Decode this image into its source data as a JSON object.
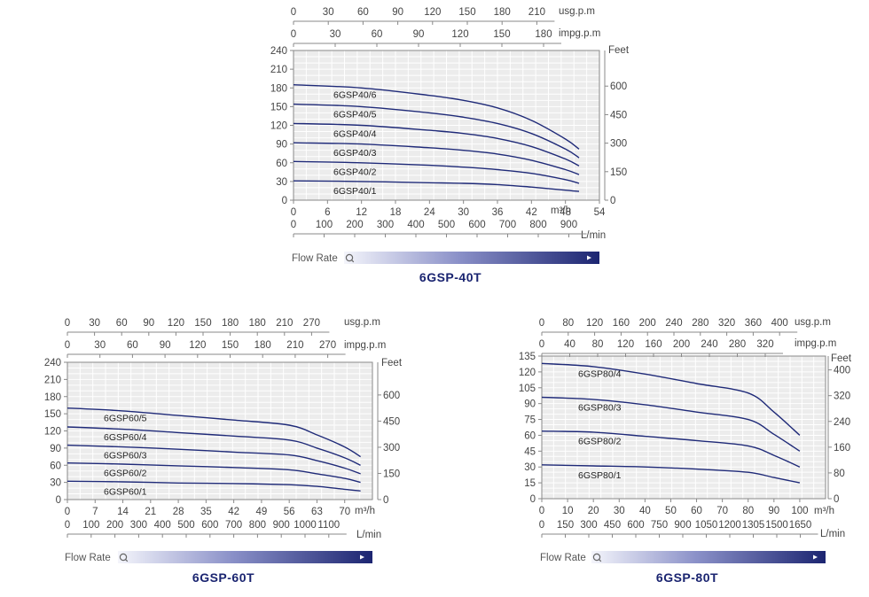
{
  "colors": {
    "curve": "#1f2a78",
    "plot_bg": "#ececec",
    "grid": "#ffffff",
    "axis": "#888888",
    "bar_start": "#f4f5fb",
    "bar_end": "#1c2571",
    "title": "#1a2470"
  },
  "chart_data": [
    {
      "type": "line",
      "title": "6GSP-40T",
      "flow_label": "Flow Rate",
      "flow_icon": "magnifier-icon",
      "x_unit": "m³/h",
      "x_ticks": [
        "0",
        "6",
        "12",
        "18",
        "24",
        "30",
        "36",
        "42",
        "48",
        "54"
      ],
      "xlim": [
        0,
        54
      ],
      "ylim": [
        0,
        240
      ],
      "y_ticks": [
        "0",
        "30",
        "60",
        "90",
        "120",
        "150",
        "180",
        "210",
        "240"
      ],
      "right_unit": "Feet",
      "right_ticks": [
        "0",
        "150",
        "300",
        "450",
        "600"
      ],
      "lmin_unit": "L/min",
      "lmin_ticks": [
        "0",
        "100",
        "200",
        "300",
        "400",
        "500",
        "600",
        "700",
        "800",
        "900"
      ],
      "usgpm_unit": "usg.p.m",
      "usgpm_ticks": [
        "0",
        "30",
        "60",
        "90",
        "120",
        "150",
        "180",
        "210"
      ],
      "impgpm_unit": "impg.p.m",
      "impgpm_ticks": [
        "0",
        "30",
        "60",
        "90",
        "120",
        "150",
        "180"
      ],
      "grid": true,
      "series": [
        {
          "name": "6GSP40/6",
          "x": [
            0,
            12,
            24,
            30,
            36,
            42,
            48,
            50.4
          ],
          "y": [
            185,
            180,
            168,
            160,
            148,
            128,
            98,
            82
          ]
        },
        {
          "name": "6GSP40/5",
          "x": [
            0,
            12,
            24,
            30,
            36,
            42,
            48,
            50.4
          ],
          "y": [
            154,
            150,
            140,
            133,
            123,
            107,
            82,
            68
          ]
        },
        {
          "name": "6GSP40/4",
          "x": [
            0,
            12,
            24,
            30,
            36,
            42,
            48,
            50.4
          ],
          "y": [
            123,
            120,
            112,
            107,
            99,
            86,
            66,
            55
          ]
        },
        {
          "name": "6GSP40/3",
          "x": [
            0,
            12,
            24,
            30,
            36,
            42,
            48,
            50.4
          ],
          "y": [
            92,
            90,
            84,
            80,
            74,
            64,
            49,
            41
          ]
        },
        {
          "name": "6GSP40/2",
          "x": [
            0,
            12,
            24,
            30,
            36,
            42,
            48,
            50.4
          ],
          "y": [
            62,
            60,
            56,
            53,
            49,
            43,
            33,
            27
          ]
        },
        {
          "name": "6GSP40/1",
          "x": [
            0,
            12,
            24,
            30,
            36,
            42,
            48,
            50.4
          ],
          "y": [
            31,
            30,
            28,
            27,
            25,
            21,
            16,
            14
          ]
        }
      ]
    },
    {
      "type": "line",
      "title": "6GSP-60T",
      "flow_label": "Flow Rate",
      "flow_icon": "magnifier-icon",
      "x_unit": "m³/h",
      "x_ticks": [
        "0",
        "7",
        "14",
        "21",
        "28",
        "35",
        "42",
        "49",
        "56",
        "63",
        "70"
      ],
      "xlim": [
        0,
        77
      ],
      "ylim": [
        0,
        240
      ],
      "y_ticks": [
        "0",
        "30",
        "60",
        "90",
        "120",
        "150",
        "180",
        "210",
        "240"
      ],
      "right_unit": "Feet",
      "right_ticks": [
        "0",
        "150",
        "300",
        "450",
        "600"
      ],
      "lmin_unit": "L/min",
      "lmin_ticks": [
        "0",
        "100",
        "200",
        "300",
        "400",
        "500",
        "600",
        "700",
        "800",
        "900",
        "1000",
        "1100"
      ],
      "usgpm_unit": "usg.p.m",
      "usgpm_ticks": [
        "0",
        "30",
        "60",
        "90",
        "120",
        "150",
        "180",
        "180",
        "210",
        "270"
      ],
      "impgpm_unit": "impg.p.m",
      "impgpm_ticks": [
        "0",
        "30",
        "60",
        "90",
        "120",
        "150",
        "180",
        "210",
        "270"
      ],
      "grid": true,
      "series": [
        {
          "name": "6GSP60/5",
          "x": [
            0,
            14,
            28,
            42,
            56,
            63,
            70,
            74
          ],
          "y": [
            160,
            155,
            147,
            139,
            130,
            113,
            92,
            75
          ]
        },
        {
          "name": "6GSP60/4",
          "x": [
            0,
            14,
            28,
            42,
            56,
            63,
            70,
            74
          ],
          "y": [
            127,
            123,
            117,
            111,
            104,
            90,
            73,
            60
          ]
        },
        {
          "name": "6GSP60/3",
          "x": [
            0,
            14,
            28,
            42,
            56,
            63,
            70,
            74
          ],
          "y": [
            95,
            92,
            88,
            83,
            78,
            68,
            55,
            45
          ]
        },
        {
          "name": "6GSP60/2",
          "x": [
            0,
            14,
            28,
            42,
            56,
            63,
            70,
            74
          ],
          "y": [
            64,
            62,
            59,
            56,
            52,
            45,
            37,
            30
          ]
        },
        {
          "name": "6GSP60/1",
          "x": [
            0,
            14,
            28,
            42,
            56,
            63,
            70,
            74
          ],
          "y": [
            32,
            31,
            29,
            28,
            26,
            23,
            18,
            15
          ]
        }
      ]
    },
    {
      "type": "line",
      "title": "6GSP-80T",
      "flow_label": "Flow Rate",
      "flow_icon": "magnifier-icon",
      "x_unit": "m³/h",
      "x_ticks": [
        "0",
        "10",
        "20",
        "30",
        "40",
        "50",
        "60",
        "70",
        "80",
        "90",
        "100"
      ],
      "xlim": [
        0,
        110
      ],
      "ylim": [
        0,
        135
      ],
      "y_ticks": [
        "0",
        "15",
        "30",
        "45",
        "60",
        "75",
        "90",
        "105",
        "120",
        "135"
      ],
      "right_unit": "Feet",
      "right_ticks": [
        "0",
        "80",
        "160",
        "240",
        "320",
        "400"
      ],
      "lmin_unit": "L/min",
      "lmin_ticks": [
        "0",
        "150",
        "300",
        "450",
        "600",
        "750",
        "900",
        "1050",
        "1200",
        "1305",
        "1500",
        "1650"
      ],
      "usgpm_unit": "usg.p.m",
      "usgpm_ticks": [
        "0",
        "80",
        "120",
        "160",
        "200",
        "240",
        "280",
        "320",
        "360",
        "400"
      ],
      "impgpm_unit": "impg.p.m",
      "impgpm_ticks": [
        "0",
        "40",
        "80",
        "120",
        "160",
        "200",
        "240",
        "280",
        "320"
      ],
      "grid": true,
      "series": [
        {
          "name": "6GSP80/4",
          "x": [
            0,
            20,
            40,
            60,
            80,
            90,
            100
          ],
          "y": [
            128,
            125,
            118,
            109,
            100,
            82,
            60
          ]
        },
        {
          "name": "6GSP80/3",
          "x": [
            0,
            20,
            40,
            60,
            80,
            90,
            100
          ],
          "y": [
            96,
            94,
            89,
            82,
            75,
            61,
            45
          ]
        },
        {
          "name": "6GSP80/2",
          "x": [
            0,
            20,
            40,
            60,
            80,
            90,
            100
          ],
          "y": [
            64,
            63,
            59,
            55,
            50,
            41,
            30
          ]
        },
        {
          "name": "6GSP80/1",
          "x": [
            0,
            20,
            40,
            60,
            80,
            90,
            100
          ],
          "y": [
            32,
            31,
            30,
            28,
            25,
            20,
            15
          ]
        }
      ]
    }
  ]
}
